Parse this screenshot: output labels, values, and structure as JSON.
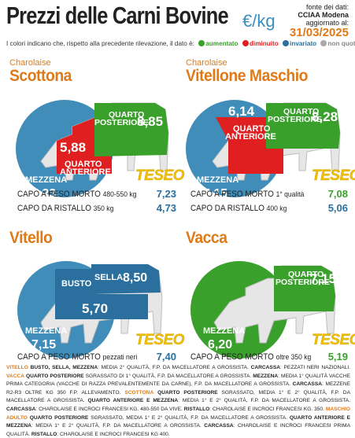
{
  "header": {
    "title": "Prezzi delle Carni Bovine",
    "unit": "€/kg",
    "source_line1": "fonte dei dati:",
    "source_line2": "CCIAA Modena",
    "source_line3": "aggiornato al:",
    "date": "31/03/2025"
  },
  "legend": {
    "intro": "I colori indicano che, rispetto alla precedente rilevazione, il dato è:",
    "items": [
      {
        "label": "aumentato",
        "color": "#3aa02c"
      },
      {
        "label": "diminuito",
        "color": "#e02020"
      },
      {
        "label": "invariato",
        "color": "#2a6f9e"
      },
      {
        "label": "non quotato.",
        "color": "#aaaaaa"
      }
    ]
  },
  "brand": "TESEO",
  "panels": {
    "scottona": {
      "breed": "Charolaise",
      "name": "Scottona",
      "mezzena_label": "MEZZENA",
      "mezzena_value": "7,23",
      "anteriore_label": "QUARTO ANTERIORE",
      "anteriore_value": "5,88",
      "posteriore_label": "QUARTO POSTERIORE",
      "posteriore_value": "8,85",
      "rows": [
        {
          "label": "CAPO A PESO MORTO",
          "detail": "480-550 kg",
          "value": "7,23"
        },
        {
          "label": "CAPO DA RISTALLO",
          "detail": "350 kg",
          "value": "4,73"
        }
      ]
    },
    "vitellone": {
      "breed": "Charolaise",
      "name": "Vitellone Maschio",
      "mezzena_label": "MEZZENA",
      "mezzena_value": "7,15",
      "anteriore_label": "QUARTO ANTERIORE",
      "anteriore_value": "6,14",
      "posteriore_label": "QUARTO POSTERIORE",
      "posteriore_value": "8,28",
      "rows": [
        {
          "label": "CAPO A PESO MORTO",
          "detail": "1° qualità",
          "value": "7,08"
        },
        {
          "label": "CAPO DA RISTALLO",
          "detail": "400 kg",
          "value": "5,06"
        }
      ]
    },
    "vitello": {
      "name": "Vitello",
      "mezzena_label": "MEZZENA",
      "mezzena_value": "7,15",
      "busto_label": "BUSTO",
      "sella_label": "SELLA",
      "sella_value": "8,50",
      "busto_value": "5,70",
      "rows": [
        {
          "label": "CAPO A PESO MORTO",
          "detail": "pezzati neri",
          "value": "7,40"
        }
      ]
    },
    "vacca": {
      "name": "Vacca",
      "mezzena_label": "MEZZENA",
      "mezzena_value": "6,20",
      "posteriore_label": "QUARTO POSTERIORE",
      "posteriore_value": "7,15",
      "rows": [
        {
          "label": "CAPO A PESO MORTO",
          "detail": "oltre 350 kg",
          "value": "5,19"
        }
      ]
    }
  },
  "footnote": {
    "p1_cat": "VITELLO",
    "p1_cuts": "BUSTO, SELLA, MEZZENA",
    "p1_text": ": media 2° qualità, f.p. da macellatore a grossista.",
    "p1_carcassa": "CARCASSA",
    "p1_carcassa_text": ": pezzati neri nazionali.",
    "p2_cat": "VACCA",
    "p2_cut": "QUARTO POSTERIORE",
    "p2_text": "sgrassato di 1° qualità, f.p. da macellatore a grossista.",
    "p2_mez": "MEZZENA",
    "p2_mez_text": ": media 1° qualità vacche prima categoria (vacche di razza prevalentemente da carne), f.p. da macellatore a grossista.",
    "p2_carcassa": "CARCASSA",
    "p2_carcassa_text": ": mezzene R2-R3 oltre kg 350 f.p. allevamento.",
    "p3_cat": "SCOTTONA",
    "p3_cut": "QUARTO POSTERIORE",
    "p3_text": "sgrassato, media 1° e 2° qualità, f.p. da macellatore a grossista.",
    "p3_cut2": "QUARTO ANTERIORE e MEZZENA",
    "p3_text2": ": media 1° e 2° qualità, f.p. da macellatore a grossista.",
    "p3_carcassa": "CARCASSA",
    "p3_carcassa_text": ": charolaise e incroci francesi kg. 480-550 da vive.",
    "p3_ristallo": "RISTALLO",
    "p3_ristallo_text": ": charolaise e incroci francesi kg. 350.",
    "p4_cat": "MASCHIO ADULTO",
    "p4_cut": "QUARTO POSTERIORE",
    "p4_text": "sgrassato, media 1° e 2° qualità, f.p. da macellatore a grossista.",
    "p4_cut2": "QUARTO ANTERIORE e MEZZENA",
    "p4_text2": ": media 1° e 2° qualità, f.p. da macellatore a grossista.",
    "p4_carcassa": "CARCASSA",
    "p4_carcassa_text": ": charolaise e incroci francesi prima qualità.",
    "p4_ristallo": "RISTALLO",
    "p4_ristallo_text": ": charolaise e incroci francesi kg 400."
  }
}
